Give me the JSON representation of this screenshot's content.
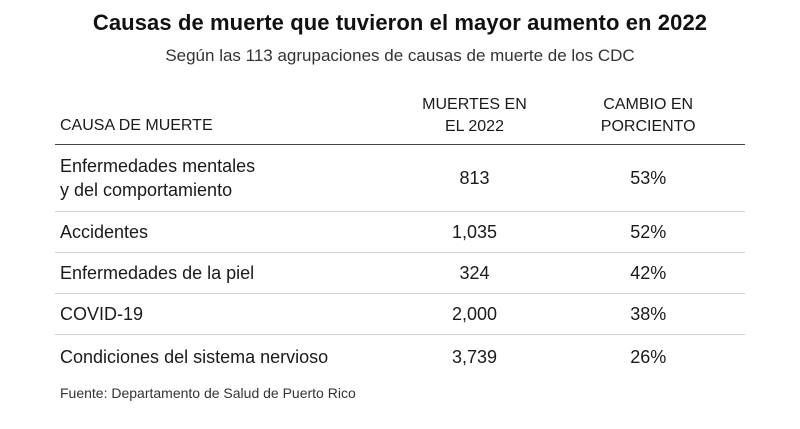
{
  "chart_data": {
    "type": "table",
    "title": "Causas de muerte que tuvieron el mayor aumento en 2022",
    "subtitle": "Según las 113 agrupaciones de causas de muerte de los CDC",
    "columns": {
      "cause": "CAUSA DE MUERTE",
      "deaths_line1": "MUERTES EN",
      "deaths_line2": "EL 2022",
      "change_line1": "CAMBIO EN",
      "change_line2": "PORCIENTO"
    },
    "rows": [
      {
        "cause_line1": "Enfermedades mentales",
        "cause_line2": "y del comportamiento",
        "deaths": "813",
        "change": "53%"
      },
      {
        "cause_line1": "Accidentes",
        "deaths": "1,035",
        "change": "52%"
      },
      {
        "cause_line1": "Enfermedades de la piel",
        "deaths": "324",
        "change": "42%"
      },
      {
        "cause_line1": "COVID-19",
        "deaths": "2,000",
        "change": "38%"
      },
      {
        "cause_line1": "Condiciones del sistema nervioso",
        "deaths": "3,739",
        "change": "26%"
      }
    ],
    "source": "Fuente: Departamento de Salud de Puerto Rico"
  }
}
